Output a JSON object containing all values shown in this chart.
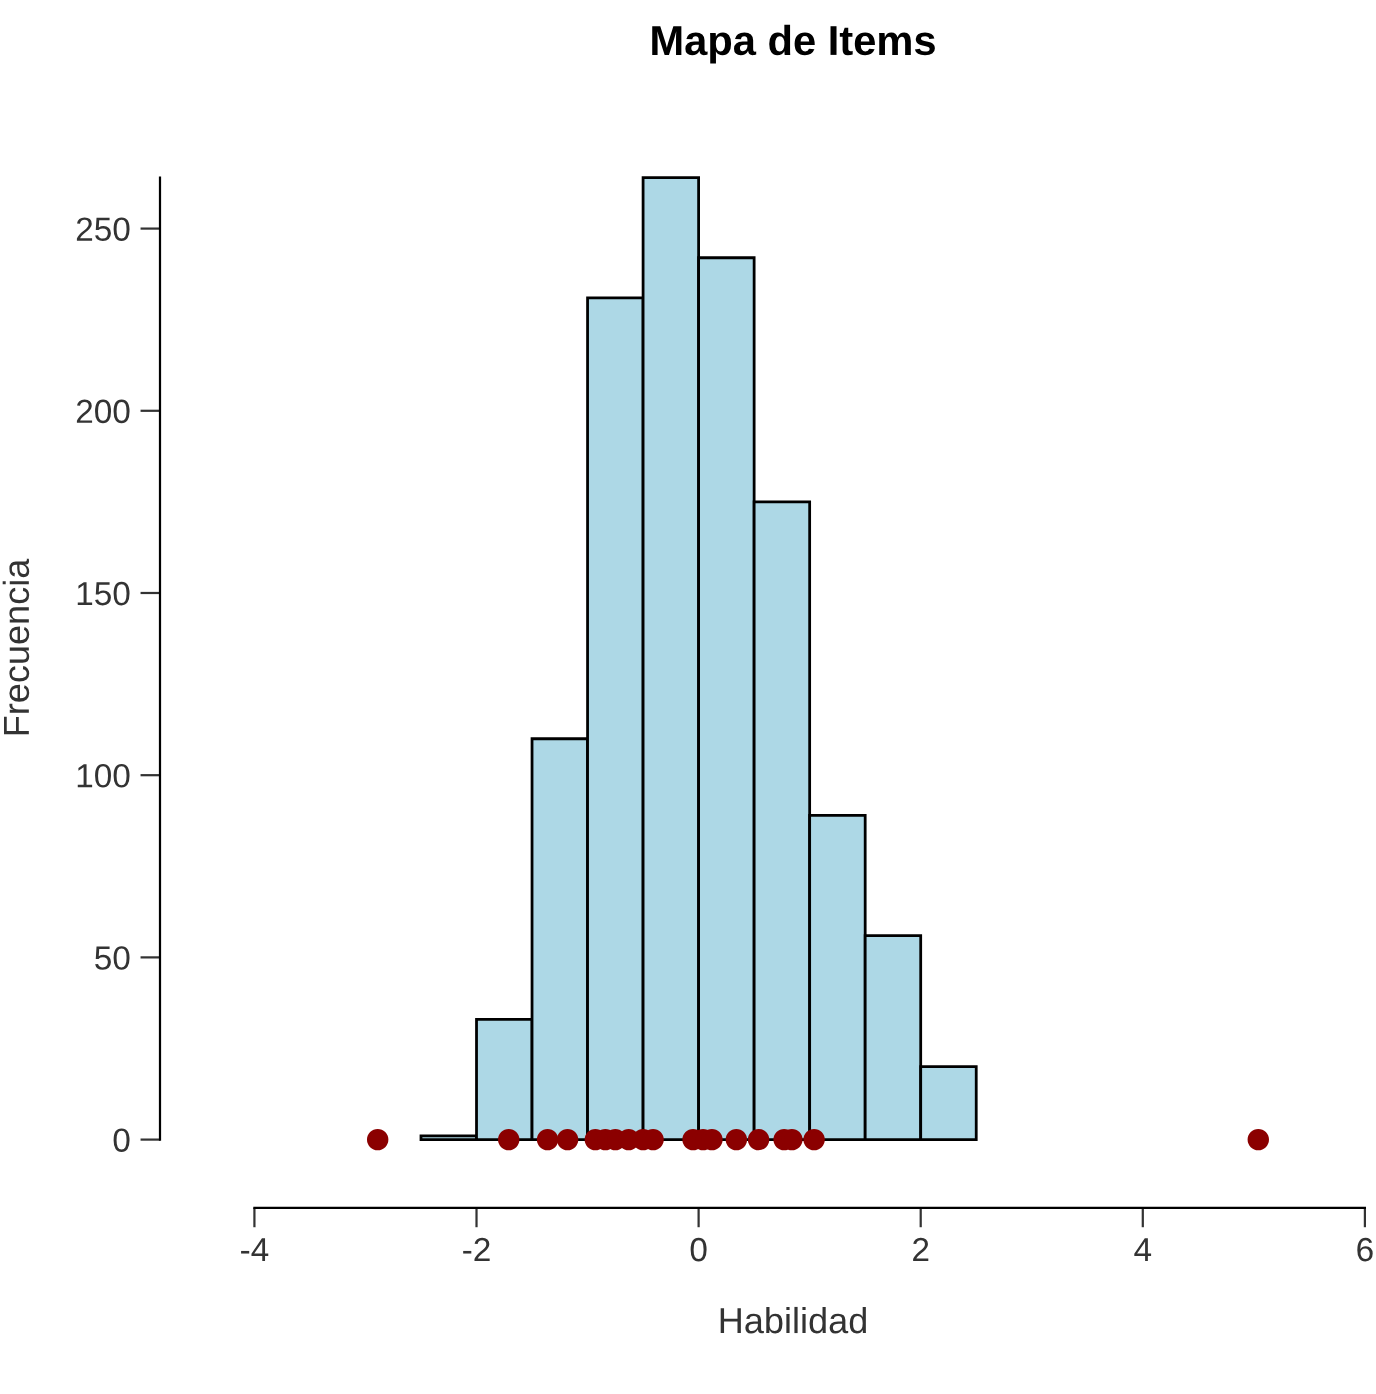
{
  "chart_data": {
    "type": "histogram",
    "title": "Mapa de Items",
    "xlabel": "Habilidad",
    "ylabel": "Frecuencia",
    "bins": [
      -2.5,
      -2.0,
      -1.5,
      -1.0,
      -0.5,
      0.0,
      0.5,
      1.0,
      1.5,
      2.0,
      2.5
    ],
    "values": [
      1,
      33,
      110,
      231,
      264,
      242,
      175,
      89,
      56,
      20
    ],
    "color": "#add8e6",
    "series": [
      {
        "type": "scatter",
        "color": "#8b0000",
        "marker": "circle",
        "x": [
          -2.89,
          -1.71,
          -1.36,
          -1.18,
          -0.93,
          -0.84,
          -0.75,
          -0.63,
          -0.5,
          -0.41,
          -0.05,
          0.04,
          0.12,
          0.34,
          0.54,
          0.77,
          0.84,
          1.04,
          5.04
        ],
        "values": [
          0,
          0,
          0,
          0,
          0,
          0,
          0,
          0,
          0,
          0,
          0,
          0,
          0,
          0,
          0,
          0,
          0,
          0,
          0
        ]
      }
    ],
    "xlim": [
      -4,
      6
    ],
    "xticks": [
      -4,
      -2,
      0,
      2,
      4,
      6
    ],
    "ylim": [
      0,
      264
    ],
    "yticks": [
      0,
      50,
      100,
      150,
      200,
      250
    ],
    "grid": false,
    "legend": false
  }
}
